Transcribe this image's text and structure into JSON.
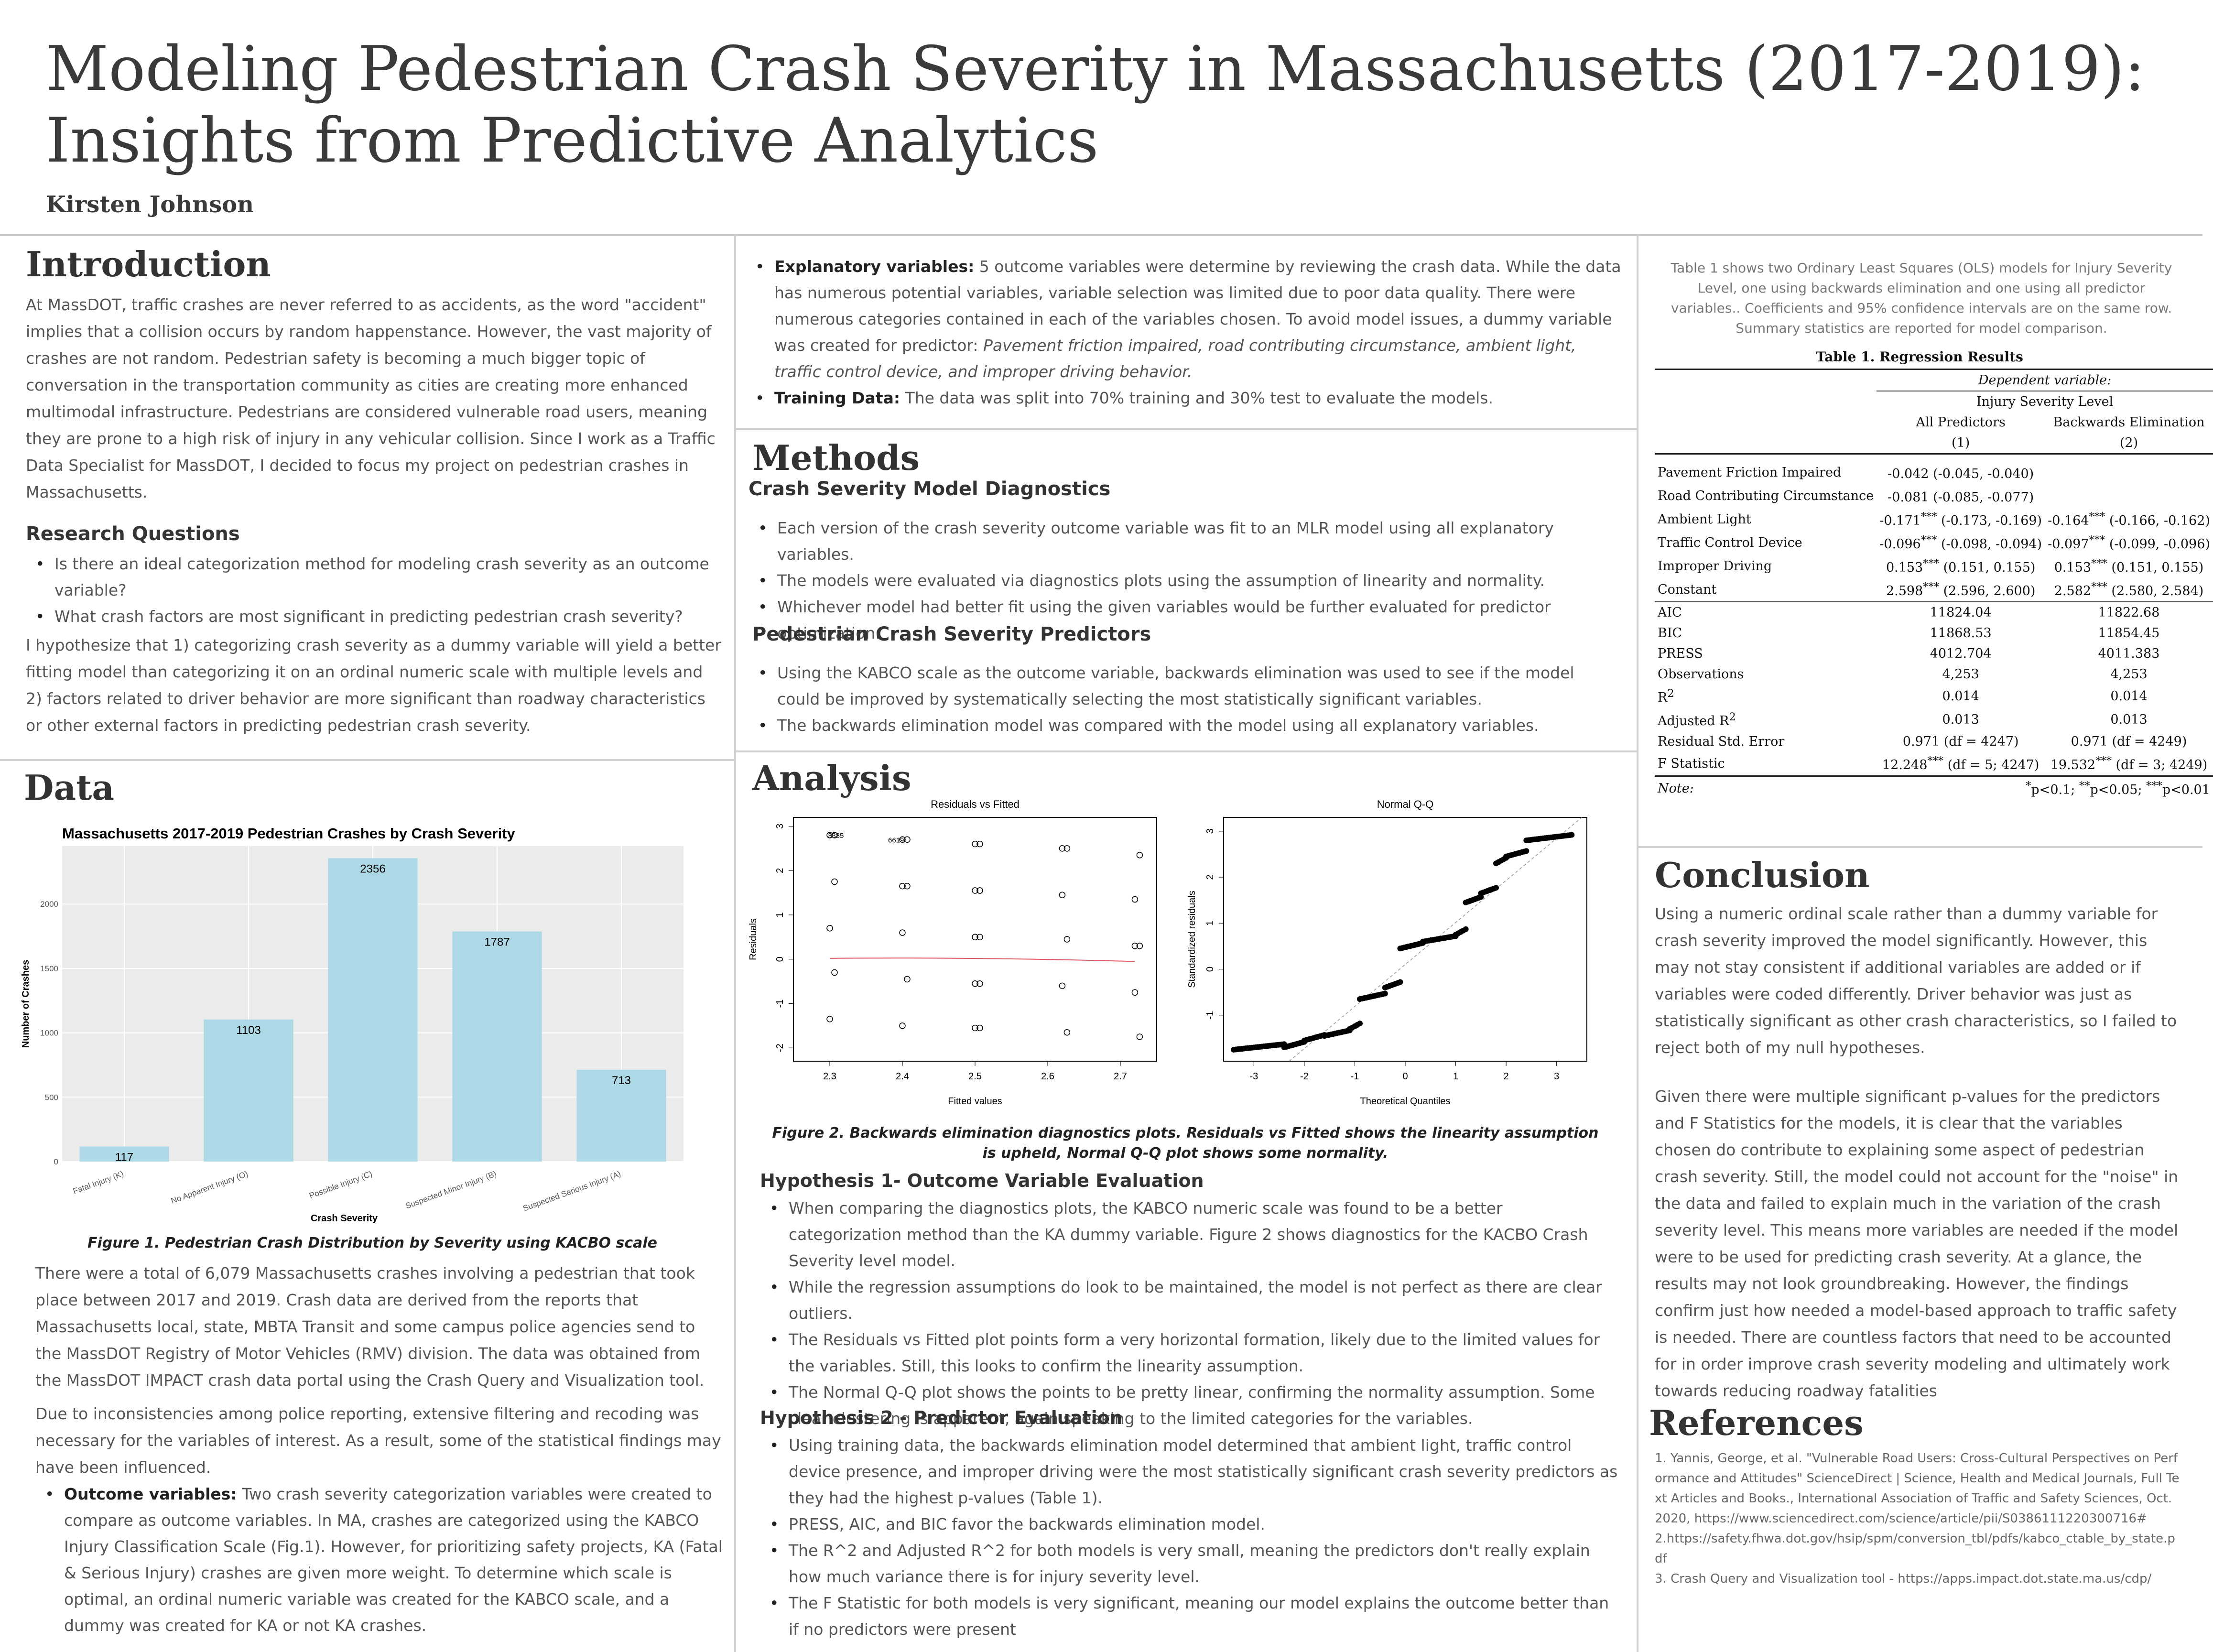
{
  "header": {
    "title_line1": "Modeling Pedestrian Crash Severity in Massachusetts (2017-2019):",
    "title_line2": "Insights from Predictive Analytics",
    "author": "Kirsten Johnson"
  },
  "introduction": {
    "heading": "Introduction",
    "body": "At MassDOT, traffic crashes are never referred to as accidents, as the word \"accident\" implies that a collision occurs by random happenstance. However, the vast majority of crashes are not random. Pedestrian safety is becoming a much bigger topic of conversation in the transportation community as cities are creating more enhanced multimodal infrastructure. Pedestrians are considered vulnerable road users, meaning they are prone to a high risk of injury in any vehicular collision. Since I work as a Traffic Data Specialist for MassDOT, I decided to focus my project on pedestrian crashes in Massachusetts.",
    "rq_heading": "Research Questions",
    "rq_items": [
      "Is there an ideal categorization method for modeling crash severity as an outcome variable?",
      "What crash factors are most significant in predicting pedestrian crash severity?"
    ],
    "hypothesis": "I hypothesize that 1) categorizing crash severity as a dummy variable will yield a better fitting model than categorizing it on an ordinal numeric scale with multiple levels and 2) factors related to driver behavior are more significant than roadway characteristics or other external factors in predicting pedestrian crash severity."
  },
  "data_section": {
    "heading": "Data",
    "figure_caption": "Figure 1. Pedestrian Crash Distribution by Severity using KACBO scale",
    "p1": "There were a total of 6,079 Massachusetts crashes involving a pedestrian that took place between 2017 and 2019. Crash data are derived from the reports that Massachusetts local, state, MBTA Transit and some campus police agencies send to the MassDOT Registry of Motor Vehicles (RMV) division. The data was obtained from the MassDOT IMPACT crash data portal using the Crash Query and Visualization tool.",
    "p2": "Due to inconsistencies among police reporting, extensive filtering and recoding was necessary for the variables of interest. As a result, some of the statistical findings may have been influenced.",
    "outcome_label": "Outcome variables:",
    "outcome_text": " Two crash severity categorization variables were created to compare as outcome variables. In MA, crashes are categorized using the KABCO Injury Classification Scale (Fig.1). However, for prioritizing safety projects, KA (Fatal & Serious Injury) crashes are given more weight. To determine which scale is optimal, an ordinal numeric variable was created for the KABCO scale, and a dummy was created for KA or not KA crashes."
  },
  "chart_data": [
    {
      "type": "bar",
      "title": "Massachusetts 2017-2019 Pedestrian Crashes by Crash Severity",
      "xlabel": "Crash Severity",
      "ylabel": "Number of Crashes",
      "categories": [
        "Fatal Injury (K)",
        "No Apparent Injury (O)",
        "Possible Injury (C)",
        "Suspected Minor Injury (B)",
        "Suspected Serious Injury (A)"
      ],
      "values": [
        117,
        1103,
        2356,
        1787,
        713
      ],
      "ylim": [
        0,
        2450
      ],
      "yticks": [
        0,
        500,
        1000,
        1500,
        2000
      ],
      "color": "#add8e6",
      "grid": true
    },
    {
      "type": "scatter",
      "title": "Residuals vs Fitted",
      "xlabel": "Fitted values",
      "ylabel": "Residuals",
      "xlim": [
        2.25,
        2.75
      ],
      "ylim": [
        -2.3,
        3.2
      ],
      "xticks": [
        2.3,
        2.4,
        2.5,
        2.6,
        2.7
      ],
      "yticks": [
        -2,
        -1,
        0,
        1,
        2,
        3
      ],
      "annotations": [
        "3385",
        "6619"
      ],
      "x": [
        2.3,
        2.3,
        2.3,
        2.3,
        2.3,
        2.3,
        2.4,
        2.4,
        2.4,
        2.4,
        2.4,
        2.4,
        2.4,
        2.5,
        2.5,
        2.5,
        2.5,
        2.5,
        2.5,
        2.5,
        2.5,
        2.5,
        2.5,
        2.5,
        2.5,
        2.62,
        2.62,
        2.62,
        2.62,
        2.62,
        2.62,
        2.72,
        2.72,
        2.72,
        2.72,
        2.72,
        2.72
      ],
      "y": [
        2.8,
        1.75,
        0.7,
        -0.3,
        -1.35,
        2.8,
        2.7,
        1.65,
        0.6,
        -0.45,
        -1.5,
        2.7,
        1.65,
        2.6,
        2.6,
        1.55,
        1.55,
        0.5,
        0.5,
        -0.55,
        -0.55,
        -1.55,
        -1.55,
        1.55,
        0.5,
        2.5,
        1.45,
        0.45,
        -0.6,
        -1.65,
        2.5,
        2.35,
        1.35,
        0.3,
        -0.75,
        -1.75,
        0.3
      ]
    },
    {
      "type": "scatter",
      "title": "Normal Q-Q",
      "xlabel": "Theoretical Quantiles",
      "ylabel": "Standardized residuals",
      "xlim": [
        -3.6,
        3.6
      ],
      "ylim": [
        -2.0,
        3.3
      ],
      "xticks": [
        -3,
        -2,
        -1,
        0,
        1,
        2,
        3
      ],
      "yticks": [
        -1,
        0,
        1,
        2,
        3
      ]
    }
  ],
  "column2": {
    "top_items": [
      {
        "label": "Explanatory variables:",
        "text": " 5 outcome variables were determine by reviewing  the crash data. While the data has numerous potential variables, variable selection was limited due to poor data quality. There were numerous categories contained in each of the variables chosen. To avoid model issues, a dummy variable was created for predictor: ",
        "italic": "Pavement friction impaired, road contributing circumstance, ambient light, traffic control device, and improper driving behavior."
      },
      {
        "label": "Training Data:",
        "text": " The data was split into 70% training and 30% test to evaluate the models.",
        "italic": ""
      }
    ],
    "methods_heading": "Methods",
    "diag_heading": "Crash Severity Model Diagnostics",
    "diag_items": [
      "Each version of the crash severity outcome variable was fit to an MLR model using all explanatory variables.",
      "The models were evaluated via diagnostics plots using the assumption of linearity and normality.",
      "Whichever model had better fit using the given variables would be further evaluated for predictor optimization."
    ],
    "pred_heading": "Pedestrian Crash Severity Predictors",
    "pred_items": [
      "Using the KABCO scale as the outcome variable, backwards elimination was used to see if the model could be improved by systematically selecting the most statistically significant variables.",
      "The backwards elimination model was compared with the model using all explanatory variables."
    ],
    "analysis_heading": "Analysis",
    "fig2_caption_1": "Figure 2. Backwards elimination diagnostics plots. Residuals vs Fitted shows the linearity assumption",
    "fig2_caption_2": "is upheld, Normal Q-Q plot shows some normality.",
    "h1_heading": "Hypothesis 1- Outcome Variable Evaluation",
    "h1_items": [
      "When comparing the diagnostics plots, the KABCO numeric scale was found to be a better categorization method than the KA dummy variable. Figure 2 shows diagnostics for the KACBO Crash Severity level model.",
      "While the regression assumptions do look to be maintained, the model is not perfect as there are clear outliers.",
      "The Residuals vs Fitted plot points form a very horizontal formation, likely due to the limited values for the variables. Still, this looks to confirm the linearity assumption.",
      "The Normal Q-Q plot shows the points to be pretty linear, confirming the normality assumption. Some clear clustering is apparent, again speaking to the limited categories for the variables."
    ],
    "h2_heading": "Hypothesis 2 - Predictor Evaluation",
    "h2_items": [
      "Using training data, the backwards elimination model determined that ambient light, traffic control device presence, and improper driving were the most statistically significant crash severity predictors as they had the highest p-values (Table 1).",
      "PRESS, AIC, and BIC favor the backwards elimination model.",
      "The R^2 and Adjusted R^2 for both models is very small, meaning the predictors don't really explain how much variance there is for injury severity level.",
      "The F Statistic for both models is very significant, meaning our model explains the outcome better than if no predictors were present"
    ]
  },
  "table": {
    "intro": "Table 1 shows two Ordinary Least Squares (OLS) models for Injury Severity Level, one using backwards elimination and one using all predictor variables.. Coefficients and 95% confidence intervals are on the same row. Summary statistics are reported for model comparison.",
    "title": "Table 1. Regression Results",
    "dep_label": "Dependent variable:",
    "dep_var": "Injury Severity Level",
    "col1": "All Predictors",
    "col2": "Backwards Elimination",
    "col1_n": "(1)",
    "col2_n": "(2)",
    "coef_rows": [
      {
        "name": "Pavement Friction Impaired",
        "v1": "-0.042",
        "s1": "",
        "ci1": " (-0.045, -0.040)",
        "v2": "",
        "s2": "",
        "ci2": ""
      },
      {
        "name": "Road Contributing Circumstance",
        "v1": "-0.081",
        "s1": "",
        "ci1": " (-0.085, -0.077)",
        "v2": "",
        "s2": "",
        "ci2": ""
      },
      {
        "name": "Ambient Light",
        "v1": "-0.171",
        "s1": "***",
        "ci1": " (-0.173, -0.169)",
        "v2": "-0.164",
        "s2": "***",
        "ci2": " (-0.166, -0.162)"
      },
      {
        "name": "Traffic Control Device",
        "v1": "-0.096",
        "s1": "***",
        "ci1": " (-0.098, -0.094)",
        "v2": "-0.097",
        "s2": "***",
        "ci2": " (-0.099, -0.096)"
      },
      {
        "name": "Improper Driving",
        "v1": "0.153",
        "s1": "***",
        "ci1": " (0.151, 0.155)",
        "v2": "0.153",
        "s2": "***",
        "ci2": " (0.151, 0.155)"
      },
      {
        "name": "Constant",
        "v1": "2.598",
        "s1": "***",
        "ci1": " (2.596, 2.600)",
        "v2": "2.582",
        "s2": "***",
        "ci2": " (2.580, 2.584)"
      }
    ],
    "aic": {
      "name": "AIC",
      "v1": "11824.04",
      "v2": "11822.68"
    },
    "bic": {
      "name": "BIC",
      "v1": "11868.53",
      "v2": "11854.45"
    },
    "press": {
      "name": "PRESS",
      "v1": "4012.704",
      "v2": "4011.383"
    },
    "obs": {
      "name": "Observations",
      "v1": "4,253",
      "v2": "4,253"
    },
    "r2": {
      "name": "R",
      "v1": "0.014",
      "v2": "0.014"
    },
    "adjr2": {
      "name": "Adjusted R",
      "v1": "0.013",
      "v2": "0.013"
    },
    "rse": {
      "name": "Residual Std. Error",
      "v1": "0.971 (df = 4247)",
      "v2": "0.971 (df = 4249)"
    },
    "fstat": {
      "name": "F Statistic",
      "v1": "12.248",
      "s1": "***",
      "d1": " (df = 5; 4247)",
      "v2": "19.532",
      "s2": "***",
      "d2": " (df = 3; 4249)"
    },
    "note_label": "Note:",
    "note_text": "p<0.1; ",
    "note_text2": "p<0.05; ",
    "note_text3": "p<0.01"
  },
  "conclusion": {
    "heading": "Conclusion",
    "p1": "Using a numeric ordinal scale rather than a dummy variable for crash severity improved the model significantly. However, this may not stay consistent if additional variables are added or if variables were coded differently. Driver behavior was just as statistically significant as other crash characteristics, so I failed to reject both of my null hypotheses.",
    "p2": " Given there were multiple significant p-values for the predictors and F Statistics for the models, it is clear that the variables chosen do contribute to explaining some aspect of pedestrian crash severity. Still, the model could not account for the \"noise\" in the data and failed to explain much in the variation of the crash severity level. This means more variables are needed if the model were to be used for predicting crash severity. At a glance, the results may not look groundbreaking. However, the findings confirm just how needed a model-based approach to traffic safety is needed. There are countless factors that need to be accounted for in order improve crash severity modeling and ultimately work towards reducing roadway fatalities"
  },
  "references": {
    "heading": "References",
    "items": [
      "1. Yannis, George, et al. \"Vulnerable Road Users: Cross-Cultural Perspectives on Performance and Attitudes\" ScienceDirect | Science, Health and Medical Journals, Full Text Articles and Books., International Association of Traffic and Safety Sciences, Oct. 2020, https://www.sciencedirect.com/science/article/pii/S0386111220300716#",
      "2.https://safety.fhwa.dot.gov/hsip/spm/conversion_tbl/pdfs/kabco_ctable_by_state.pdf",
      "3. Crash Query and Visualization tool - https://apps.impact.dot.state.ma.us/cdp/"
    ]
  }
}
